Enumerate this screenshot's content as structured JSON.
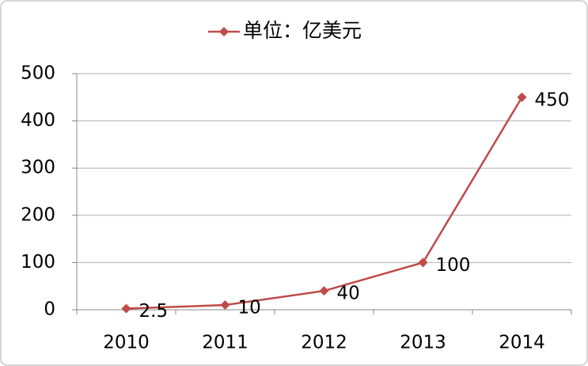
{
  "chart_data": {
    "type": "line",
    "categories": [
      "2010",
      "2011",
      "2012",
      "2013",
      "2014"
    ],
    "series": [
      {
        "name": "单位：亿美元",
        "color": "#be4b48",
        "values": [
          2.5,
          10,
          40,
          100,
          450
        ]
      }
    ],
    "ylim": [
      0,
      500
    ],
    "yticks": [
      0,
      100,
      200,
      300,
      400,
      500
    ],
    "grid": true,
    "legend": "top",
    "data_labels": true
  }
}
